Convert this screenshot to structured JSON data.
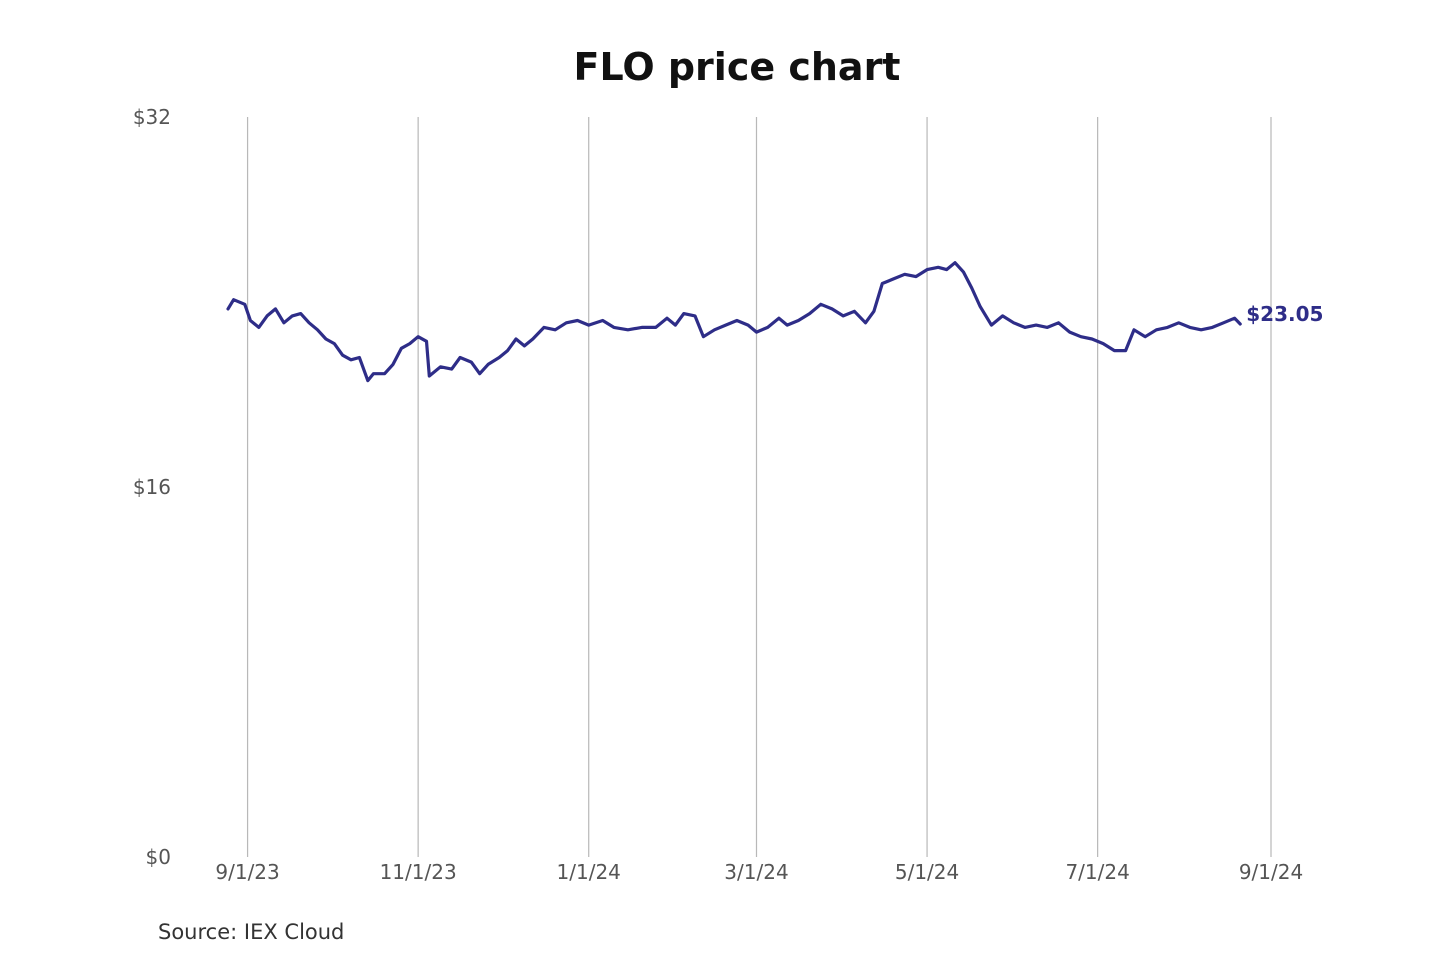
{
  "chart_data": {
    "type": "line",
    "title": "FLO price chart",
    "xlabel": "",
    "ylabel": "",
    "source": "Source: IEX Cloud",
    "last_value_label": "$23.05",
    "grid": "vertical",
    "legend": "none",
    "colors": {
      "line": "#2e2d88",
      "grid": "#b8b8b8"
    },
    "x_range": [
      "2023-08-25",
      "2024-09-01"
    ],
    "ylim": [
      0,
      32
    ],
    "y_ticks": [
      {
        "value": 0,
        "label": "$0"
      },
      {
        "value": 16,
        "label": "$16"
      },
      {
        "value": 32,
        "label": "$32"
      }
    ],
    "x_ticks": [
      {
        "date": "2023-09-01",
        "label": "9/1/23"
      },
      {
        "date": "2023-11-01",
        "label": "11/1/23"
      },
      {
        "date": "2024-01-01",
        "label": "1/1/24"
      },
      {
        "date": "2024-03-01",
        "label": "3/1/24"
      },
      {
        "date": "2024-05-01",
        "label": "5/1/24"
      },
      {
        "date": "2024-07-01",
        "label": "7/1/24"
      },
      {
        "date": "2024-09-01",
        "label": "9/1/24"
      }
    ],
    "series": [
      {
        "values": [
          [
            "2023-08-25",
            23.7
          ],
          [
            "2023-08-27",
            24.1
          ],
          [
            "2023-08-31",
            23.9
          ],
          [
            "2023-09-02",
            23.2
          ],
          [
            "2023-09-05",
            22.9
          ],
          [
            "2023-09-08",
            23.4
          ],
          [
            "2023-09-11",
            23.7
          ],
          [
            "2023-09-14",
            23.1
          ],
          [
            "2023-09-17",
            23.4
          ],
          [
            "2023-09-20",
            23.5
          ],
          [
            "2023-09-23",
            23.1
          ],
          [
            "2023-09-26",
            22.8
          ],
          [
            "2023-09-29",
            22.4
          ],
          [
            "2023-10-02",
            22.2
          ],
          [
            "2023-10-05",
            21.7
          ],
          [
            "2023-10-08",
            21.5
          ],
          [
            "2023-10-11",
            21.6
          ],
          [
            "2023-10-14",
            20.6
          ],
          [
            "2023-10-16",
            20.9
          ],
          [
            "2023-10-20",
            20.9
          ],
          [
            "2023-10-23",
            21.3
          ],
          [
            "2023-10-26",
            22.0
          ],
          [
            "2023-10-29",
            22.2
          ],
          [
            "2023-11-01",
            22.5
          ],
          [
            "2023-11-04",
            22.3
          ],
          [
            "2023-11-05",
            20.8
          ],
          [
            "2023-11-09",
            21.2
          ],
          [
            "2023-11-13",
            21.1
          ],
          [
            "2023-11-16",
            21.6
          ],
          [
            "2023-11-20",
            21.4
          ],
          [
            "2023-11-23",
            20.9
          ],
          [
            "2023-11-26",
            21.3
          ],
          [
            "2023-11-30",
            21.6
          ],
          [
            "2023-12-03",
            21.9
          ],
          [
            "2023-12-06",
            22.4
          ],
          [
            "2023-12-09",
            22.1
          ],
          [
            "2023-12-12",
            22.4
          ],
          [
            "2023-12-16",
            22.9
          ],
          [
            "2023-12-20",
            22.8
          ],
          [
            "2023-12-24",
            23.1
          ],
          [
            "2023-12-28",
            23.2
          ],
          [
            "2024-01-01",
            23.0
          ],
          [
            "2024-01-06",
            23.2
          ],
          [
            "2024-01-10",
            22.9
          ],
          [
            "2024-01-15",
            22.8
          ],
          [
            "2024-01-20",
            22.9
          ],
          [
            "2024-01-25",
            22.9
          ],
          [
            "2024-01-29",
            23.3
          ],
          [
            "2024-02-01",
            23.0
          ],
          [
            "2024-02-04",
            23.5
          ],
          [
            "2024-02-08",
            23.4
          ],
          [
            "2024-02-11",
            22.5
          ],
          [
            "2024-02-15",
            22.8
          ],
          [
            "2024-02-19",
            23.0
          ],
          [
            "2024-02-23",
            23.2
          ],
          [
            "2024-02-27",
            23.0
          ],
          [
            "2024-03-01",
            22.7
          ],
          [
            "2024-03-05",
            22.9
          ],
          [
            "2024-03-09",
            23.3
          ],
          [
            "2024-03-12",
            23.0
          ],
          [
            "2024-03-16",
            23.2
          ],
          [
            "2024-03-20",
            23.5
          ],
          [
            "2024-03-24",
            23.9
          ],
          [
            "2024-03-28",
            23.7
          ],
          [
            "2024-04-01",
            23.4
          ],
          [
            "2024-04-05",
            23.6
          ],
          [
            "2024-04-09",
            23.1
          ],
          [
            "2024-04-12",
            23.6
          ],
          [
            "2024-04-15",
            24.8
          ],
          [
            "2024-04-19",
            25.0
          ],
          [
            "2024-04-23",
            25.2
          ],
          [
            "2024-04-27",
            25.1
          ],
          [
            "2024-05-01",
            25.4
          ],
          [
            "2024-05-05",
            25.5
          ],
          [
            "2024-05-08",
            25.4
          ],
          [
            "2024-05-11",
            25.7
          ],
          [
            "2024-05-14",
            25.3
          ],
          [
            "2024-05-17",
            24.6
          ],
          [
            "2024-05-20",
            23.8
          ],
          [
            "2024-05-24",
            23.0
          ],
          [
            "2024-05-28",
            23.4
          ],
          [
            "2024-06-01",
            23.1
          ],
          [
            "2024-06-05",
            22.9
          ],
          [
            "2024-06-09",
            23.0
          ],
          [
            "2024-06-13",
            22.9
          ],
          [
            "2024-06-17",
            23.1
          ],
          [
            "2024-06-21",
            22.7
          ],
          [
            "2024-06-25",
            22.5
          ],
          [
            "2024-06-29",
            22.4
          ],
          [
            "2024-07-03",
            22.2
          ],
          [
            "2024-07-07",
            21.9
          ],
          [
            "2024-07-11",
            21.9
          ],
          [
            "2024-07-14",
            22.8
          ],
          [
            "2024-07-18",
            22.5
          ],
          [
            "2024-07-22",
            22.8
          ],
          [
            "2024-07-26",
            22.9
          ],
          [
            "2024-07-30",
            23.1
          ],
          [
            "2024-08-03",
            22.9
          ],
          [
            "2024-08-07",
            22.8
          ],
          [
            "2024-08-11",
            22.9
          ],
          [
            "2024-08-15",
            23.1
          ],
          [
            "2024-08-19",
            23.3
          ],
          [
            "2024-08-21",
            23.05
          ]
        ]
      }
    ]
  }
}
